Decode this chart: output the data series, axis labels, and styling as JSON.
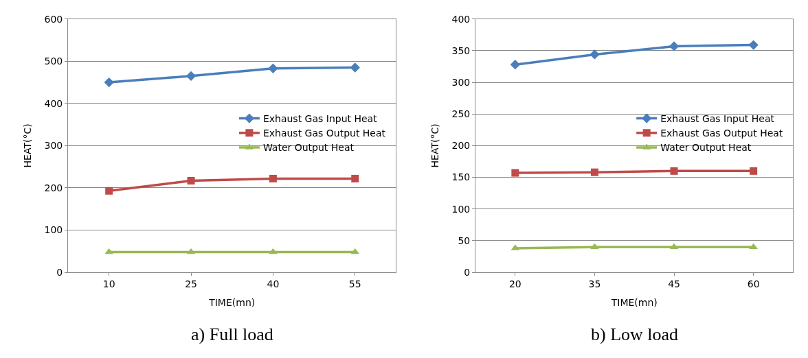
{
  "chart_data": [
    {
      "type": "line",
      "title": "a) Full load",
      "xlabel": "TIME(mn)",
      "ylabel": "HEAT(°C)",
      "categories": [
        "10",
        "25",
        "40",
        "55"
      ],
      "ylim": [
        0,
        600
      ],
      "yticks": [
        0,
        100,
        200,
        300,
        400,
        500,
        600
      ],
      "grid": "y",
      "legend": "right",
      "line_style": "solid",
      "series": [
        {
          "name": "Exhaust Gas Input Heat",
          "color": "#4a7ebb",
          "marker": "diamond",
          "values": [
            450,
            465,
            483,
            485
          ]
        },
        {
          "name": "Exhaust Gas Output Heat",
          "color": "#be4b48",
          "marker": "square",
          "values": [
            193,
            217,
            222,
            222
          ]
        },
        {
          "name": "Water Output Heat",
          "color": "#98b954",
          "marker": "triangle",
          "values": [
            48,
            48,
            48,
            48
          ]
        }
      ]
    },
    {
      "type": "line",
      "title": "b) Low load",
      "xlabel": "TIME(mn)",
      "ylabel": "HEAT(°C)",
      "categories": [
        "20",
        "35",
        "45",
        "60"
      ],
      "ylim": [
        0,
        400
      ],
      "yticks": [
        0,
        50,
        100,
        150,
        200,
        250,
        300,
        350,
        400
      ],
      "grid": "y",
      "legend": "right",
      "line_style": "solid",
      "series": [
        {
          "name": "Exhaust Gas Input Heat",
          "color": "#4a7ebb",
          "marker": "diamond",
          "values": [
            328,
            344,
            357,
            359
          ]
        },
        {
          "name": "Exhaust Gas Output Heat",
          "color": "#be4b48",
          "marker": "square",
          "values": [
            157,
            158,
            160,
            160
          ]
        },
        {
          "name": "Water Output Heat",
          "color": "#98b954",
          "marker": "triangle",
          "values": [
            38,
            40,
            40,
            40
          ]
        }
      ]
    }
  ]
}
